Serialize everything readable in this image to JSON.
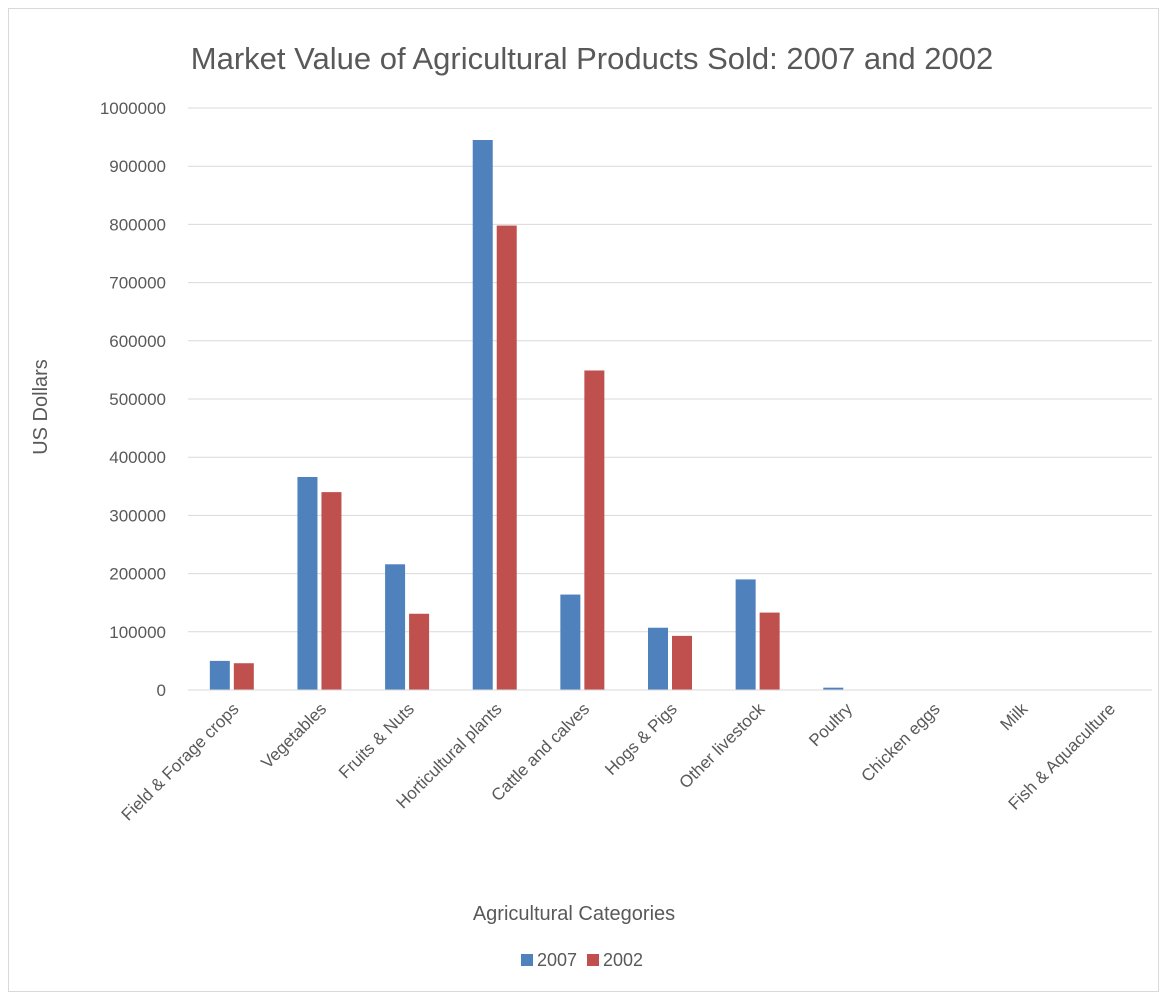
{
  "chart_data": {
    "type": "bar",
    "title": "Market Value of Agricultural Products Sold: 2007 and 2002",
    "xlabel": "Agricultural Categories",
    "ylabel": "US Dollars",
    "ylim": [
      0,
      1000000
    ],
    "ytick_step": 100000,
    "yticks": [
      "0",
      "100000",
      "200000",
      "300000",
      "400000",
      "500000",
      "600000",
      "700000",
      "800000",
      "900000",
      "1000000"
    ],
    "grid": true,
    "legend_position": "bottom",
    "categories": [
      "Field & Forage crops",
      "Vegetables",
      "Fruits & Nuts",
      "Horticultural plants",
      "Cattle and calves",
      "Hogs & Pigs",
      "Other livestock",
      "Poultry",
      "Chicken eggs",
      "Milk",
      "Fish & Aquaculture"
    ],
    "series": [
      {
        "name": "2007",
        "color": "#4f81bd",
        "values": [
          50000,
          366000,
          216000,
          945000,
          164000,
          107000,
          190000,
          4000,
          0,
          0,
          0
        ]
      },
      {
        "name": "2002",
        "color": "#c0504d",
        "values": [
          46000,
          340000,
          131000,
          798000,
          549000,
          93000,
          133000,
          0,
          0,
          0,
          0
        ]
      }
    ]
  }
}
